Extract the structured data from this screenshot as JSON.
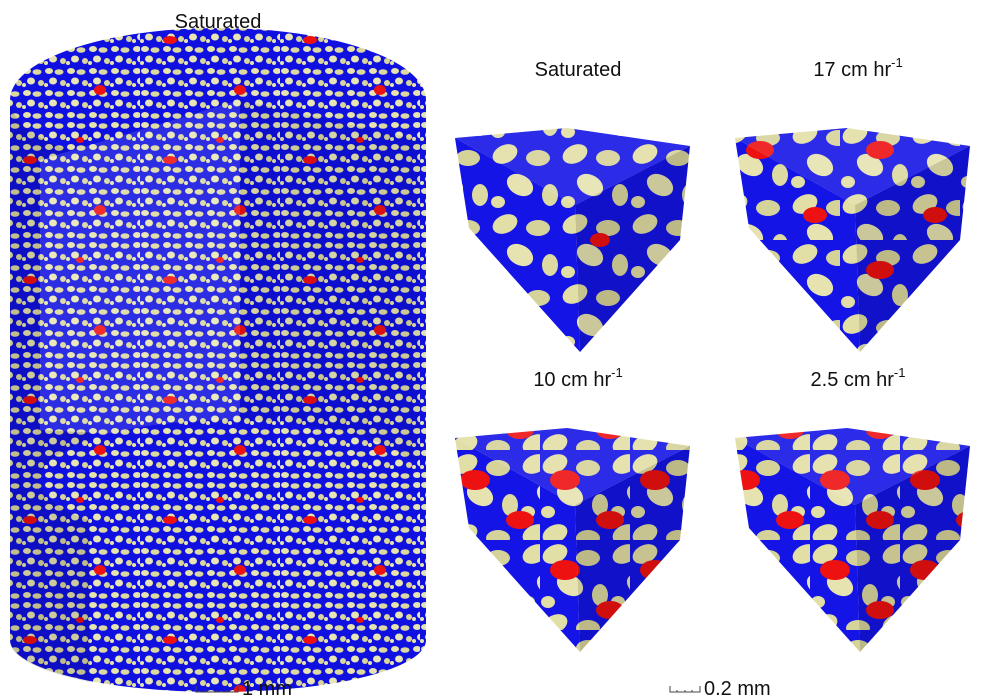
{
  "figure": {
    "title": "Saturated",
    "panels": [
      {
        "label": "Saturated"
      },
      {
        "label": "17 cm hr",
        "sup": "-1"
      },
      {
        "label": "10 cm hr",
        "sup": "-1"
      },
      {
        "label": "2.5 cm hr",
        "sup": "-1"
      }
    ],
    "scale_bars": [
      "1 mm",
      "0.2 mm"
    ]
  }
}
